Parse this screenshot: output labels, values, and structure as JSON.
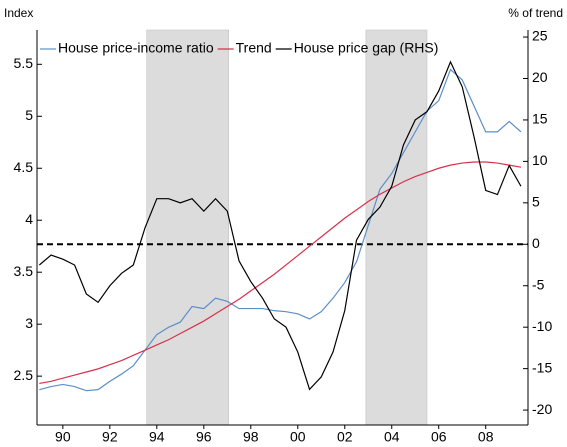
{
  "chart_data": {
    "type": "line",
    "ylabel": "Index",
    "y2label": "% of trend",
    "x": [
      1989.5,
      1990,
      1990.5,
      1991,
      1991.5,
      1992,
      1992.5,
      1993,
      1993.5,
      1994,
      1994.5,
      1995,
      1995.5,
      1996,
      1996.5,
      1997,
      1997.5,
      1998,
      1998.5,
      1999,
      1999.5,
      2000,
      2000.5,
      2001,
      2001.5,
      2002,
      2002.5,
      2003,
      2003.5,
      2004,
      2004.5,
      2005,
      2005.5,
      2006,
      2006.5,
      2007,
      2007.5,
      2008,
      2008.5,
      2009,
      2009.5,
      2010
    ],
    "series": [
      {
        "name": "House price-income ratio",
        "color": "#5b8fc9",
        "axis": "y",
        "values": [
          2.37,
          2.4,
          2.42,
          2.4,
          2.36,
          2.37,
          2.45,
          2.52,
          2.6,
          2.75,
          2.9,
          2.97,
          3.02,
          3.17,
          3.15,
          3.25,
          3.22,
          3.15,
          3.15,
          3.15,
          3.13,
          3.12,
          3.1,
          3.05,
          3.12,
          3.25,
          3.4,
          3.6,
          3.95,
          4.3,
          4.45,
          4.65,
          4.85,
          5.05,
          5.15,
          5.45,
          5.35,
          5.1,
          4.85,
          4.85,
          4.95,
          4.85
        ]
      },
      {
        "name": "Trend",
        "color": "#d9304a",
        "axis": "y",
        "values": [
          2.43,
          2.45,
          2.48,
          2.51,
          2.54,
          2.57,
          2.61,
          2.65,
          2.7,
          2.75,
          2.8,
          2.85,
          2.91,
          2.97,
          3.03,
          3.1,
          3.17,
          3.24,
          3.32,
          3.4,
          3.48,
          3.57,
          3.66,
          3.75,
          3.84,
          3.93,
          4.02,
          4.1,
          4.18,
          4.25,
          4.31,
          4.37,
          4.42,
          4.46,
          4.5,
          4.53,
          4.55,
          4.56,
          4.56,
          4.55,
          4.53,
          4.51
        ]
      },
      {
        "name": "House price gap (RHS)",
        "color": "#000000",
        "axis": "y2",
        "values": [
          -2.5,
          -1.3,
          -1.8,
          -2.5,
          -6,
          -7,
          -5,
          -3.5,
          -2.5,
          2,
          5.5,
          5.5,
          5,
          5.5,
          4,
          5.5,
          4,
          -2,
          -4.5,
          -6.5,
          -9,
          -10,
          -13,
          -17.5,
          -16,
          -13,
          -8,
          0.5,
          3,
          4.5,
          7,
          12,
          15,
          16,
          18.5,
          22,
          19,
          13,
          6.5,
          6,
          9.5,
          7
        ]
      }
    ],
    "xlim": [
      1989.4,
      2010.3
    ],
    "xticks": [
      {
        "value": 1990.5,
        "label": "90"
      },
      {
        "value": 1992.5,
        "label": "92"
      },
      {
        "value": 1994.5,
        "label": "94"
      },
      {
        "value": 1996.5,
        "label": "96"
      },
      {
        "value": 1998.5,
        "label": "98"
      },
      {
        "value": 2000.5,
        "label": "00"
      },
      {
        "value": 2002.5,
        "label": "02"
      },
      {
        "value": 2004.5,
        "label": "04"
      },
      {
        "value": 2006.5,
        "label": "06"
      },
      {
        "value": 2008.5,
        "label": "08"
      }
    ],
    "ylim": [
      2.03,
      5.83
    ],
    "yticks": [
      2.5,
      3,
      3.5,
      4,
      4.5,
      5,
      5.5
    ],
    "y2lim": [
      -21.8,
      25.85
    ],
    "y2ticks": [
      -20,
      -15,
      -10,
      -5,
      0,
      5,
      10,
      15,
      20,
      25
    ],
    "shaded_periods": [
      [
        1994.07,
        1997.56
      ],
      [
        2003.4,
        2006.0
      ]
    ],
    "shade_color": "#dcdcdc",
    "hlines": [
      {
        "axis": "y2",
        "value": 0,
        "color": "#000000"
      }
    ]
  }
}
